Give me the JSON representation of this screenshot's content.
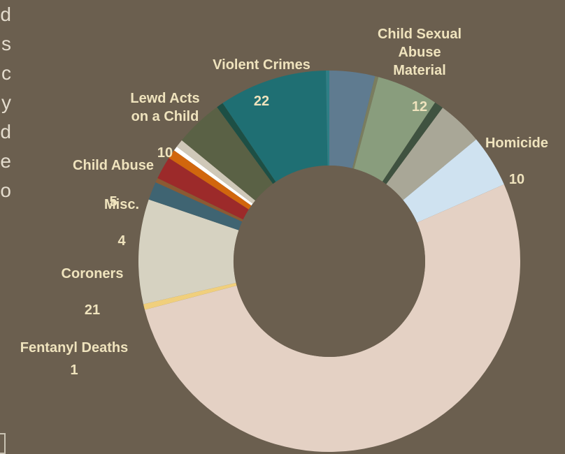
{
  "edge_fragments": [
    "d",
    "s",
    "c",
    "y",
    "d",
    "e",
    "o"
  ],
  "chart_data": {
    "type": "pie",
    "donut": true,
    "title": "",
    "labels": [
      {
        "text": "Child Sexual\nAbuse\nMaterial",
        "value": "12"
      },
      {
        "text": "Violent Crimes",
        "value": "22"
      },
      {
        "text": "Lewd Acts\non a Child",
        "value": "10"
      },
      {
        "text": "Child Abuse",
        "value": "5"
      },
      {
        "text": "Misc.",
        "value": "4"
      },
      {
        "text": "Homicide",
        "value": "10"
      },
      {
        "text": "Coroners",
        "value": "21"
      },
      {
        "text": "Fentanyl Deaths",
        "value": "1"
      }
    ],
    "slices": [
      {
        "name": "blue-grey",
        "value": 4.0,
        "color": "#5f7b90"
      },
      {
        "name": "olive-thin",
        "value": 0.3,
        "color": "#7a7d5f"
      },
      {
        "name": "sage",
        "value": 5.4,
        "color": "#899d7d"
      },
      {
        "name": "dark-green-thin",
        "value": 0.8,
        "color": "#3f5240"
      },
      {
        "name": "grey",
        "value": 4.0,
        "color": "#a9a797"
      },
      {
        "name": "Homicide",
        "value": 4.6,
        "color": "#cfe2f0"
      },
      {
        "name": "big-beige",
        "value": 54.5,
        "color": "#e4d1c4"
      },
      {
        "name": "Fentanyl Deaths",
        "value": 0.5,
        "color": "#f0cf7c"
      },
      {
        "name": "Coroners",
        "value": 9.2,
        "color": "#d6d2c1"
      },
      {
        "name": "slate",
        "value": 1.6,
        "color": "#3f6472"
      },
      {
        "name": "brown-thin",
        "value": 0.4,
        "color": "#8b5a33"
      },
      {
        "name": "red",
        "value": 2.0,
        "color": "#9c2a2a"
      },
      {
        "name": "orange",
        "value": 0.8,
        "color": "#d1660d"
      },
      {
        "name": "white",
        "value": 0.4,
        "color": "#ffffff"
      },
      {
        "name": "light-grey",
        "value": 0.7,
        "color": "#cfc8b8"
      },
      {
        "name": "olive-dark",
        "value": 4.2,
        "color": "#5a6145"
      },
      {
        "name": "dark-teal-thin",
        "value": 0.6,
        "color": "#1d4f45"
      },
      {
        "name": "Violent Crimes",
        "value": 9.5,
        "color": "#1f6f73"
      },
      {
        "name": "teal-thin",
        "value": 0.3,
        "color": "#2e7f86"
      }
    ],
    "start_angle_deg": 0,
    "hole_color": "#6b5f4f",
    "legend": "none"
  }
}
